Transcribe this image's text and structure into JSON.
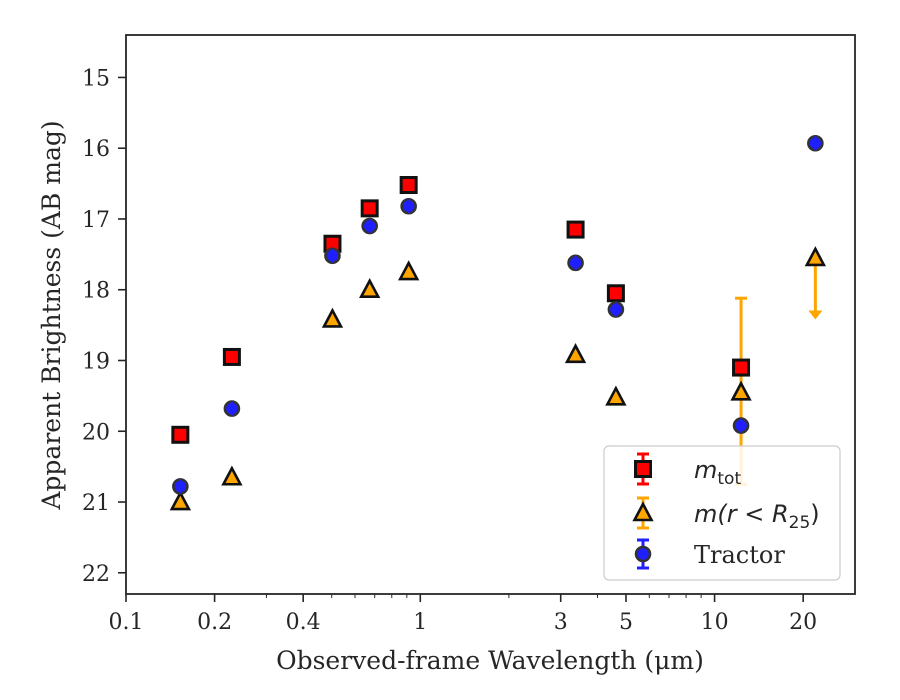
{
  "chart_data": {
    "type": "scatter",
    "xlabel": "Observed-frame Wavelength (μm)",
    "ylabel": "Apparent Brightness (AB mag)",
    "xscale": "log",
    "xlim": [
      0.1,
      30
    ],
    "ylim": [
      22.3,
      14.4
    ],
    "y_inverted": true,
    "grid": false,
    "legend_position": "lower-right",
    "x_tick_labels": [
      "0.1",
      "0.2",
      "0.4",
      "1",
      "3",
      "5",
      "10",
      "20"
    ],
    "x_tick_values": [
      0.1,
      0.2,
      0.4,
      1,
      3,
      5,
      10,
      20
    ],
    "y_tick_labels": [
      "15",
      "16",
      "17",
      "18",
      "19",
      "20",
      "21",
      "22"
    ],
    "y_tick_values": [
      15,
      16,
      17,
      18,
      19,
      20,
      21,
      22
    ],
    "legend": {
      "mtot": {
        "base": "m",
        "sub": "tot"
      },
      "mr25": {
        "text": "m(r < R",
        "sub": "25",
        "close": ")"
      },
      "tractor": {
        "text": "Tractor"
      }
    },
    "series": [
      {
        "key": "mtot",
        "marker": "square",
        "color": "#ff0000",
        "edgecolor": "#111111",
        "x": [
          0.153,
          0.229,
          0.503,
          0.673,
          0.913,
          3.37,
          4.62,
          12.3
        ],
        "y": [
          20.05,
          18.95,
          17.35,
          16.85,
          16.52,
          17.15,
          18.05,
          19.1
        ],
        "yerr_low": [
          0,
          0,
          0,
          0,
          0,
          0,
          0,
          0
        ],
        "yerr_high": [
          0,
          0,
          0,
          0,
          0,
          0,
          0,
          0
        ]
      },
      {
        "key": "mr25",
        "marker": "triangle",
        "color": "#ffa500",
        "edgecolor": "#111111",
        "x": [
          0.153,
          0.229,
          0.503,
          0.673,
          0.913,
          3.37,
          4.62,
          12.3,
          22.0
        ],
        "y": [
          21.0,
          20.65,
          18.42,
          18.0,
          17.75,
          18.92,
          19.52,
          19.45,
          17.55
        ],
        "err_lo_bound": [
          null,
          null,
          null,
          null,
          null,
          null,
          null,
          18.12,
          null
        ],
        "err_hi_bound": [
          null,
          null,
          null,
          null,
          null,
          null,
          null,
          20.75,
          null
        ],
        "upper_limit_to": [
          null,
          null,
          null,
          null,
          null,
          null,
          null,
          null,
          18.42
        ]
      },
      {
        "key": "tractor",
        "marker": "circle",
        "color": "#1f1fff",
        "edgecolor": "#333333",
        "x": [
          0.153,
          0.229,
          0.503,
          0.673,
          0.913,
          3.37,
          4.62,
          12.3,
          22.0
        ],
        "y": [
          20.78,
          19.68,
          17.52,
          17.1,
          16.82,
          17.62,
          18.28,
          19.92,
          15.93
        ]
      }
    ],
    "colors": {
      "axis": "#262626",
      "mtot_errbar": "#ff0000",
      "mr25_errbar": "#ffa500",
      "tractor_errbar": "#1f1fff"
    }
  }
}
